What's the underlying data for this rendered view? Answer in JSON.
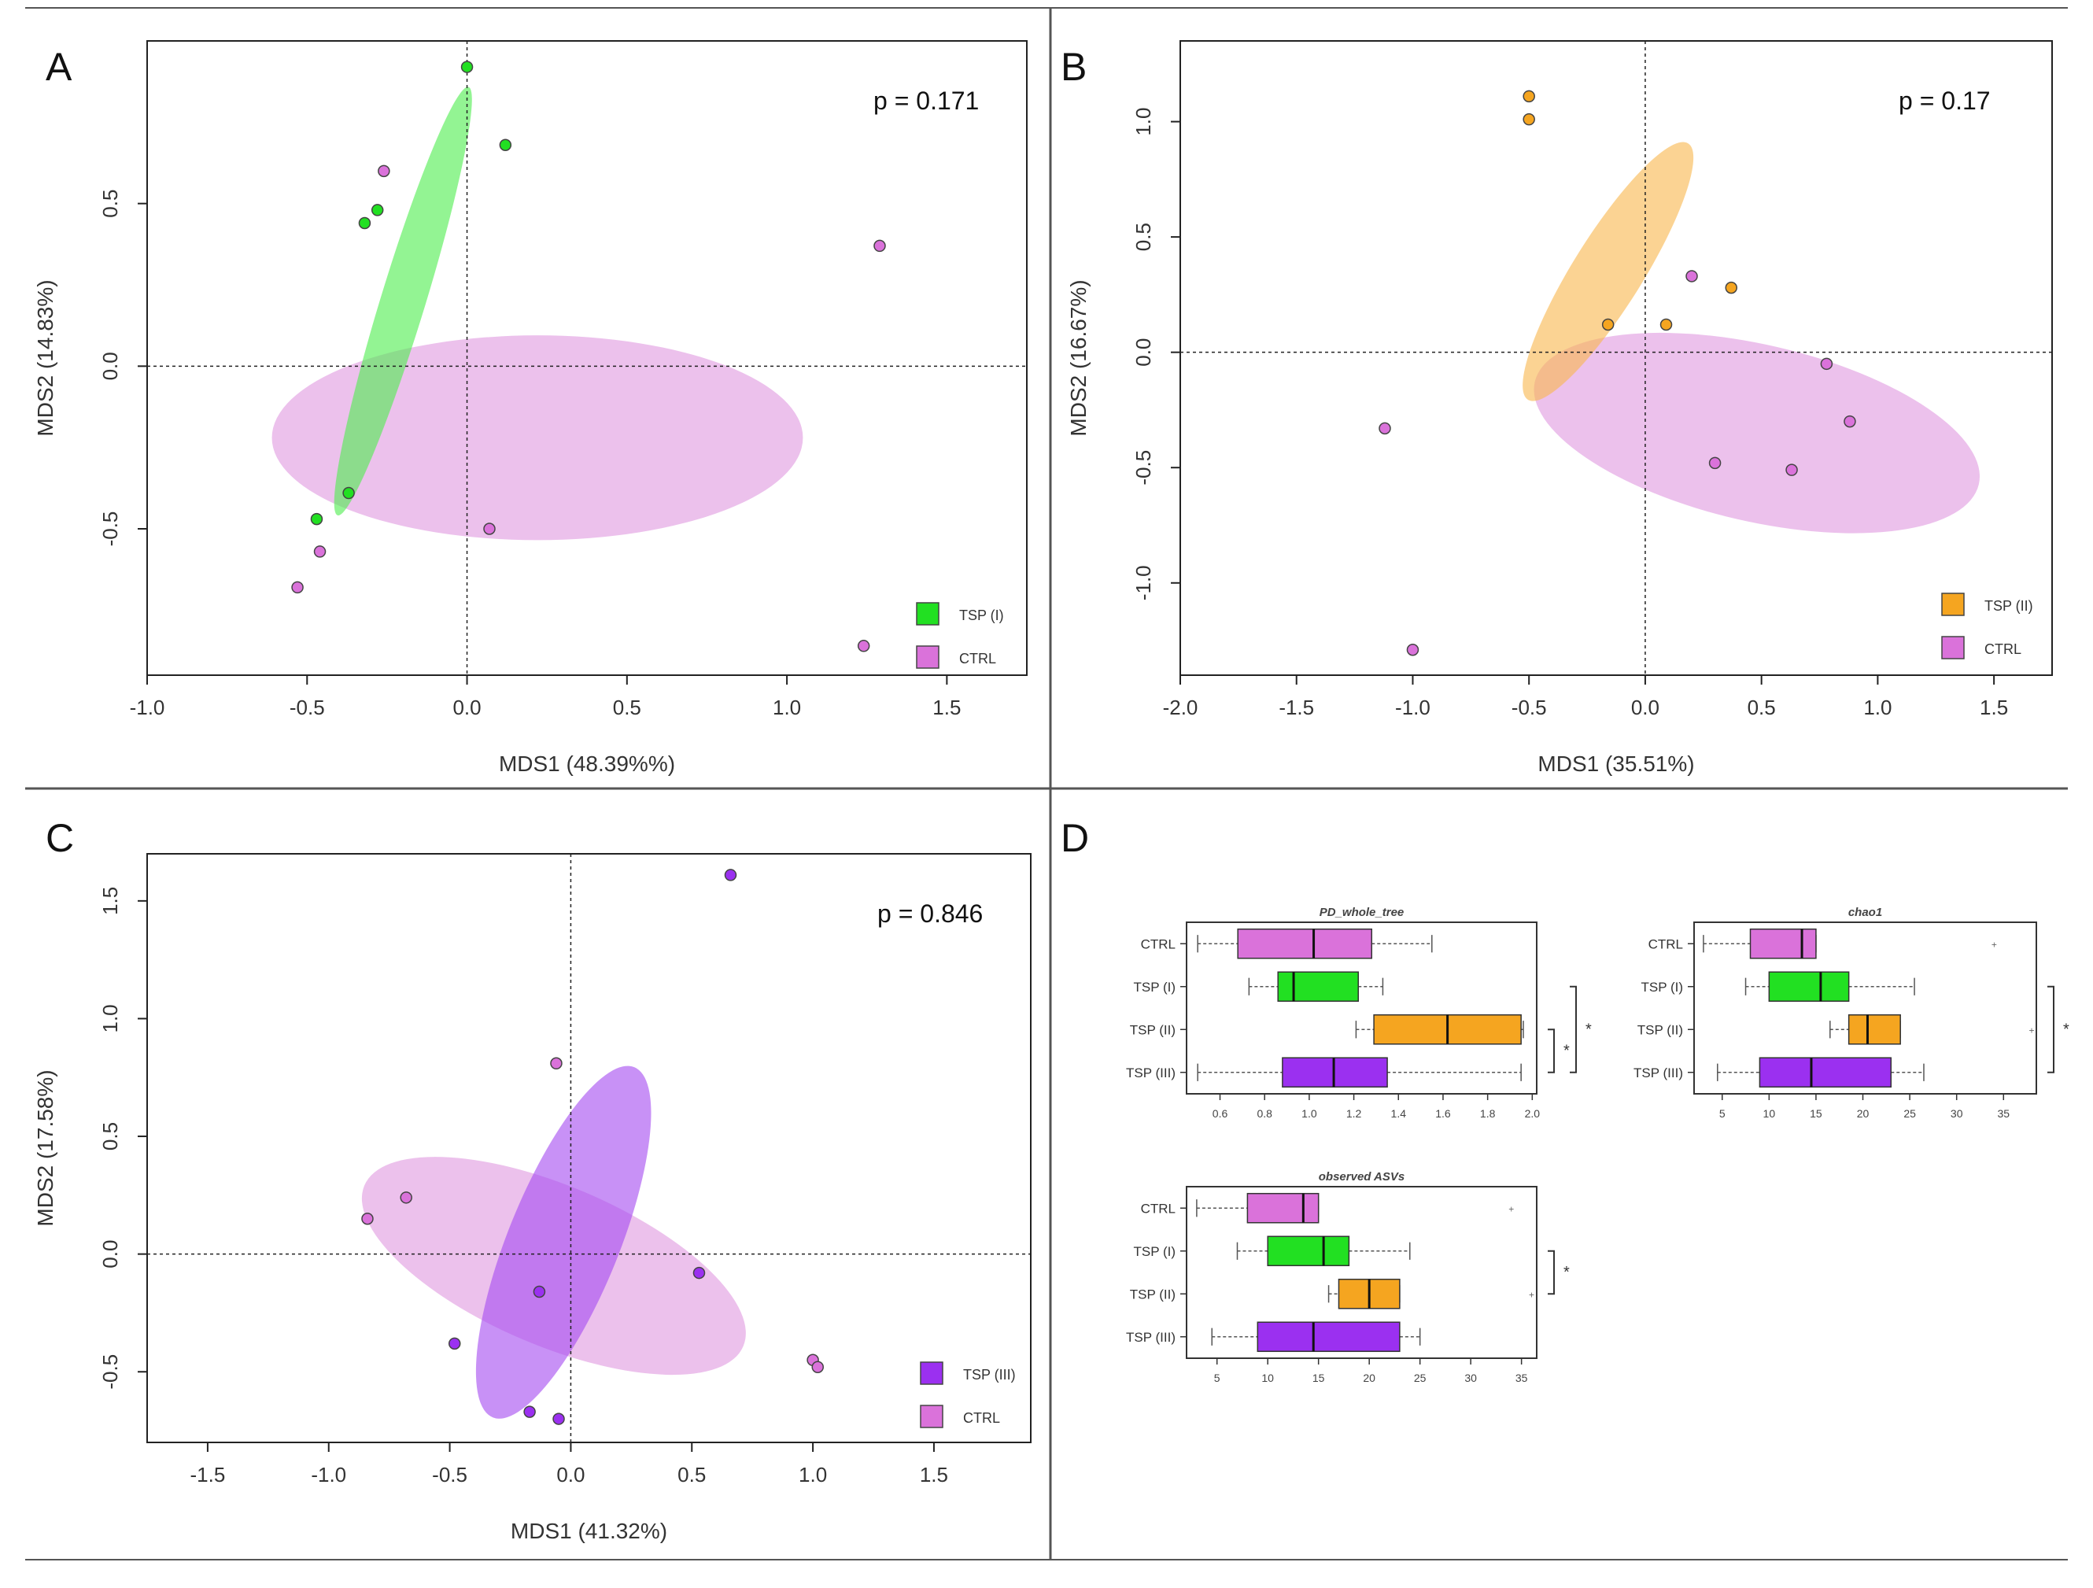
{
  "figure": {
    "colors": {
      "tsp1": "#22e022",
      "tsp2": "#f5a520",
      "tsp3": "#9b30f0",
      "ctrl": "#da72da",
      "ellipse_tsp1": "#50ee50",
      "ellipse_tsp2": "#f8b850",
      "ellipse_tsp3": "#a64ef0",
      "ellipse_ctrl": "#e09be0"
    }
  },
  "chart_data": [
    {
      "panel": "A",
      "type": "scatter",
      "p_value": "p = 0.171",
      "xlabel": "MDS1 (48.39%%)",
      "ylabel": "MDS2 (14.83%)",
      "xlim": [
        -1.0,
        1.75
      ],
      "ylim": [
        -0.95,
        1.0
      ],
      "xticks": [
        -1.0,
        -0.5,
        0.0,
        0.5,
        1.0,
        1.5
      ],
      "xtick_labels": [
        "-1.0",
        "-0.5",
        "0.0",
        "0.5",
        "1.0",
        "1.5"
      ],
      "yticks": [
        -0.5,
        0.0,
        0.5
      ],
      "ytick_labels": [
        "-0.5",
        "0.0",
        "0.5"
      ],
      "legend": [
        {
          "label": "TSP (I)",
          "color_key": "tsp1"
        },
        {
          "label": "CTRL",
          "color_key": "ctrl"
        }
      ],
      "ellipses": [
        {
          "group": "ctrl",
          "cx": 0.22,
          "cy": -0.22,
          "rx": 0.83,
          "ry": 0.32,
          "angle": 0
        },
        {
          "group": "tsp1",
          "cx": -0.2,
          "cy": 0.2,
          "rx": 0.7,
          "ry": 0.07,
          "angle": 73
        }
      ],
      "series": [
        {
          "group": "tsp1",
          "points": [
            [
              0.0,
              0.92
            ],
            [
              0.12,
              0.68
            ],
            [
              -0.28,
              0.48
            ],
            [
              -0.32,
              0.44
            ],
            [
              -0.47,
              -0.47
            ],
            [
              -0.37,
              -0.39
            ]
          ]
        },
        {
          "group": "ctrl",
          "points": [
            [
              -0.26,
              0.6
            ],
            [
              1.29,
              0.37
            ],
            [
              0.07,
              -0.5
            ],
            [
              -0.46,
              -0.57
            ],
            [
              -0.53,
              -0.68
            ],
            [
              1.24,
              -0.86
            ]
          ]
        }
      ]
    },
    {
      "panel": "B",
      "type": "scatter",
      "p_value": "p = 0.17",
      "xlabel": "MDS1 (35.51%)",
      "ylabel": "MDS2 (16.67%)",
      "xlim": [
        -2.0,
        1.75
      ],
      "ylim": [
        -1.4,
        1.35
      ],
      "xticks": [
        -2.0,
        -1.5,
        -1.0,
        -0.5,
        0.0,
        0.5,
        1.0,
        1.5
      ],
      "xtick_labels": [
        "-2.0",
        "-1.5",
        "-1.0",
        "-0.5",
        "0.0",
        "0.5",
        "1.0",
        "1.5"
      ],
      "yticks": [
        -1.0,
        -0.5,
        0.0,
        0.5,
        1.0
      ],
      "ytick_labels": [
        "-1.0",
        "-0.5",
        "0.0",
        "0.5",
        "1.0"
      ],
      "legend": [
        {
          "label": "TSP (II)",
          "color_key": "tsp2"
        },
        {
          "label": "CTRL",
          "color_key": "ctrl"
        }
      ],
      "ellipses": [
        {
          "group": "ctrl",
          "cx": 0.48,
          "cy": -0.35,
          "rx": 0.98,
          "ry": 0.38,
          "angle": -13
        },
        {
          "group": "tsp2",
          "cx": -0.16,
          "cy": 0.35,
          "rx": 0.65,
          "ry": 0.15,
          "angle": 58
        }
      ],
      "series": [
        {
          "group": "tsp2",
          "points": [
            [
              -0.5,
              1.11
            ],
            [
              -0.5,
              1.01
            ],
            [
              0.37,
              0.28
            ],
            [
              -0.16,
              0.12
            ],
            [
              0.09,
              0.12
            ]
          ]
        },
        {
          "group": "ctrl",
          "points": [
            [
              0.2,
              0.33
            ],
            [
              0.78,
              -0.05
            ],
            [
              0.88,
              -0.3
            ],
            [
              -1.12,
              -0.33
            ],
            [
              0.3,
              -0.48
            ],
            [
              0.63,
              -0.51
            ],
            [
              -1.0,
              -1.29
            ]
          ]
        }
      ]
    },
    {
      "panel": "C",
      "type": "scatter",
      "p_value": "p = 0.846",
      "xlabel": "MDS1 (41.32%)",
      "ylabel": "MDS2 (17.58%)",
      "xlim": [
        -1.75,
        1.9
      ],
      "ylim": [
        -0.8,
        1.7
      ],
      "xticks": [
        -1.5,
        -1.0,
        -0.5,
        0.0,
        0.5,
        1.0,
        1.5
      ],
      "xtick_labels": [
        "-1.5",
        "-1.0",
        "-0.5",
        "0.0",
        "0.5",
        "1.0",
        "1.5"
      ],
      "yticks": [
        -0.5,
        0.0,
        0.5,
        1.0,
        1.5
      ],
      "ytick_labels": [
        "-0.5",
        "0.0",
        "0.5",
        "1.0",
        "1.5"
      ],
      "legend": [
        {
          "label": "TSP (III)",
          "color_key": "tsp3"
        },
        {
          "label": "CTRL",
          "color_key": "ctrl"
        }
      ],
      "ellipses": [
        {
          "group": "ctrl",
          "cx": -0.07,
          "cy": -0.05,
          "rx": 0.85,
          "ry": 0.33,
          "angle": -23
        },
        {
          "group": "tsp3",
          "cx": -0.03,
          "cy": 0.05,
          "rx": 0.78,
          "ry": 0.23,
          "angle": 68
        }
      ],
      "series": [
        {
          "group": "tsp3",
          "points": [
            [
              0.66,
              1.61
            ],
            [
              -0.13,
              -0.16
            ],
            [
              0.53,
              -0.08
            ],
            [
              -0.48,
              -0.38
            ],
            [
              -0.17,
              -0.67
            ],
            [
              -0.05,
              -0.7
            ]
          ]
        },
        {
          "group": "ctrl",
          "points": [
            [
              -0.06,
              0.81
            ],
            [
              -0.68,
              0.24
            ],
            [
              -0.84,
              0.15
            ],
            [
              1.0,
              -0.45
            ],
            [
              1.02,
              -0.48
            ]
          ]
        }
      ]
    },
    {
      "panel": "D",
      "type": "boxplot",
      "categories": [
        "CTRL",
        "TSP (I)",
        "TSP (II)",
        "TSP (III)"
      ],
      "category_color_keys": [
        "ctrl",
        "tsp1",
        "tsp2",
        "tsp3"
      ],
      "plots": [
        {
          "title": "PD_whole_tree",
          "xlim": [
            0.45,
            2.02
          ],
          "xticks": [
            0.6,
            0.8,
            1.0,
            1.2,
            1.4,
            1.6,
            1.8,
            2.0
          ],
          "xtick_labels": [
            "0.6",
            "0.8",
            "1.0",
            "1.2",
            "1.4",
            "1.6",
            "1.8",
            "2.0"
          ],
          "boxes": [
            {
              "min": 0.5,
              "q1": 0.68,
              "median": 1.02,
              "q3": 1.28,
              "max": 1.55
            },
            {
              "min": 0.73,
              "q1": 0.86,
              "median": 0.93,
              "q3": 1.22,
              "max": 1.33
            },
            {
              "min": 1.21,
              "q1": 1.29,
              "median": 1.62,
              "q3": 1.95,
              "max": 1.96
            },
            {
              "min": 0.5,
              "q1": 0.88,
              "median": 1.11,
              "q3": 1.35,
              "max": 1.95
            }
          ],
          "significance": [
            {
              "from": 2,
              "to": 3,
              "label": "*"
            },
            {
              "from": 1,
              "to": 3,
              "label": "*"
            }
          ]
        },
        {
          "title": "chao1",
          "xlim": [
            2.0,
            38.5
          ],
          "xticks": [
            5,
            10,
            15,
            20,
            25,
            30,
            35
          ],
          "xtick_labels": [
            "5",
            "10",
            "15",
            "20",
            "25",
            "30",
            "35"
          ],
          "boxes": [
            {
              "min": 3,
              "q1": 8,
              "median": 13.5,
              "q3": 15,
              "max": 15,
              "outlier": 34
            },
            {
              "min": 7.5,
              "q1": 10,
              "median": 15.5,
              "q3": 18.5,
              "max": 25.5
            },
            {
              "min": 16.5,
              "q1": 18.5,
              "median": 20.5,
              "q3": 24,
              "max": 24,
              "outlier": 38
            },
            {
              "min": 4.5,
              "q1": 9,
              "median": 14.5,
              "q3": 23,
              "max": 26.5
            }
          ],
          "significance": [
            {
              "from": 1,
              "to": 3,
              "label": "*"
            }
          ]
        },
        {
          "title": "observed ASVs",
          "xlim": [
            2.0,
            36.5
          ],
          "xticks": [
            5,
            10,
            15,
            20,
            25,
            30,
            35
          ],
          "xtick_labels": [
            "5",
            "10",
            "15",
            "20",
            "25",
            "30",
            "35"
          ],
          "boxes": [
            {
              "min": 3,
              "q1": 8,
              "median": 13.5,
              "q3": 15,
              "max": 15,
              "outlier": 34
            },
            {
              "min": 7,
              "q1": 10,
              "median": 15.5,
              "q3": 18,
              "max": 24
            },
            {
              "min": 16,
              "q1": 17,
              "median": 20,
              "q3": 23,
              "max": 23,
              "outlier": 36
            },
            {
              "min": 4.5,
              "q1": 9,
              "median": 14.5,
              "q3": 23,
              "max": 25
            }
          ],
          "significance": [
            {
              "from": 1,
              "to": 2,
              "label": "*"
            }
          ]
        }
      ]
    }
  ]
}
